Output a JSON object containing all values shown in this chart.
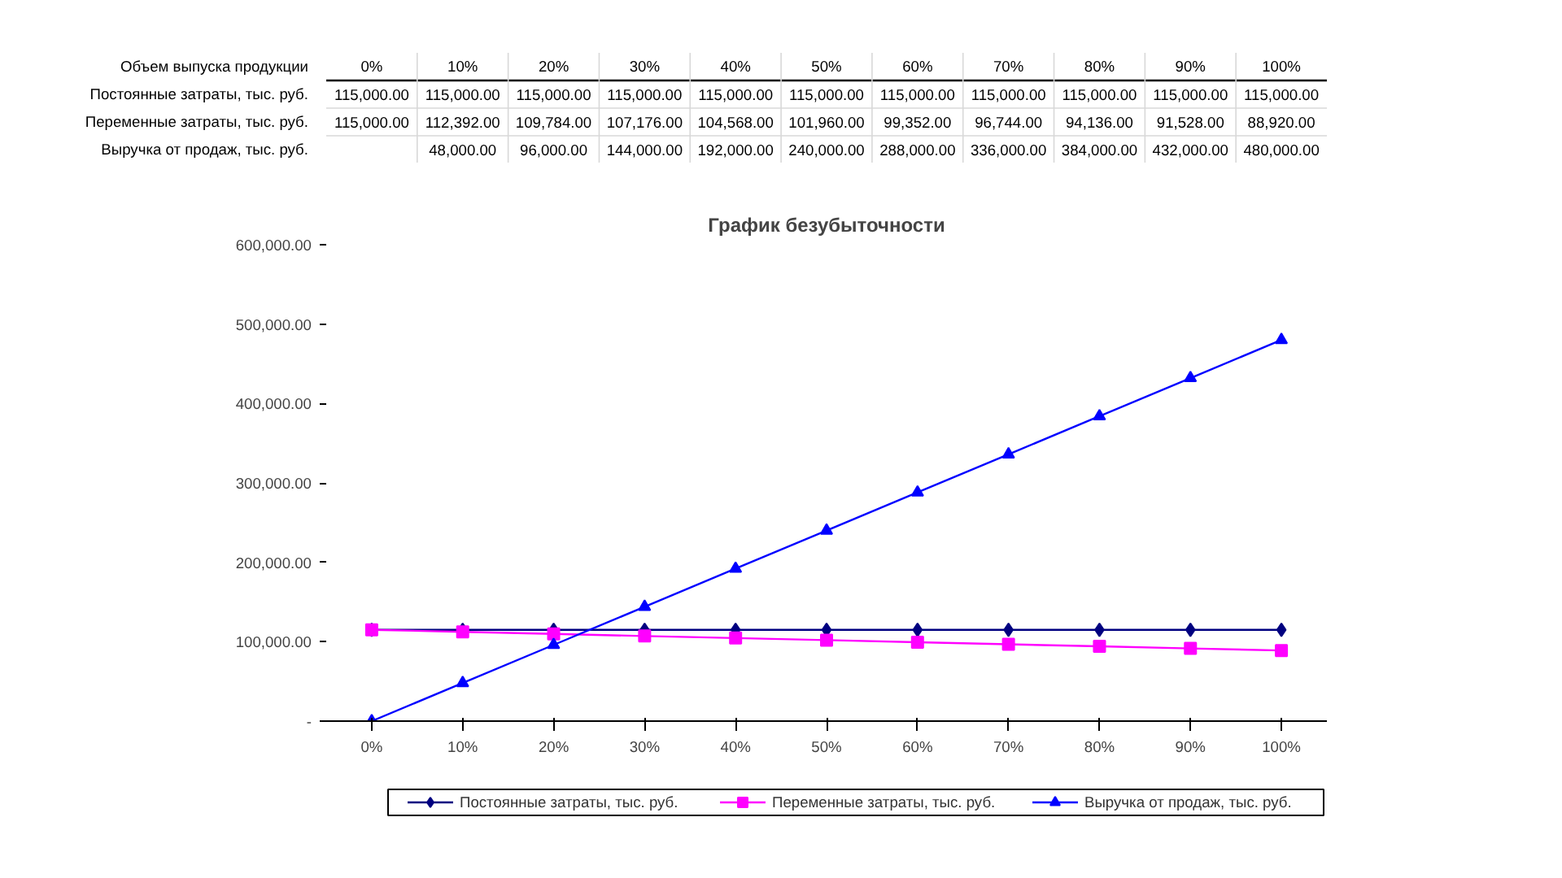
{
  "chart_data": {
    "type": "line",
    "title": "График безубыточности",
    "annotations": [
      "Объем выпуска продукции"
    ],
    "categories": [
      "0%",
      "10%",
      "20%",
      "30%",
      "40%",
      "50%",
      "60%",
      "70%",
      "80%",
      "90%",
      "100%"
    ],
    "series": [
      {
        "name": "Постоянные затраты, тыс. руб.",
        "color": "#000080",
        "marker": "diamond",
        "values": [
          115000,
          115000,
          115000,
          115000,
          115000,
          115000,
          115000,
          115000,
          115000,
          115000,
          115000
        ],
        "value_labels": [
          "115,000.00",
          "115,000.00",
          "115,000.00",
          "115,000.00",
          "115,000.00",
          "115,000.00",
          "115,000.00",
          "115,000.00",
          "115,000.00",
          "115,000.00",
          "115,000.00"
        ]
      },
      {
        "name": "Переменные затраты, тыс. руб.",
        "color": "#ff00ff",
        "marker": "square",
        "values": [
          115000,
          112392,
          109784,
          107176,
          104568,
          101960,
          99352,
          96744,
          94136,
          91528,
          88920
        ],
        "value_labels": [
          "115,000.00",
          "112,392.00",
          "109,784.00",
          "107,176.00",
          "104,568.00",
          "101,960.00",
          "99,352.00",
          "96,744.00",
          "94,136.00",
          "91,528.00",
          "88,920.00"
        ]
      },
      {
        "name": "Выручка от продаж, тыс. руб.",
        "color": "#0000ff",
        "marker": "triangle",
        "values": [
          0,
          48000,
          96000,
          144000,
          192000,
          240000,
          288000,
          336000,
          384000,
          432000,
          480000
        ],
        "value_labels": [
          null,
          "48,000.00",
          "96,000.00",
          "144,000.00",
          "192,000.00",
          "240,000.00",
          "288,000.00",
          "336,000.00",
          "384,000.00",
          "432,000.00",
          "480,000.00"
        ]
      }
    ],
    "ylim": [
      0,
      600000
    ],
    "yticks": [
      {
        "value": 0,
        "label": "-"
      },
      {
        "value": 100000,
        "label": "100,000.00"
      },
      {
        "value": 200000,
        "label": "200,000.00"
      },
      {
        "value": 300000,
        "label": "300,000.00"
      },
      {
        "value": 400000,
        "label": "400,000.00"
      },
      {
        "value": 500000,
        "label": "500,000.00"
      },
      {
        "value": 600000,
        "label": "600,000.00"
      }
    ],
    "grid": false,
    "legend": "bottom",
    "line_style": "solid"
  }
}
